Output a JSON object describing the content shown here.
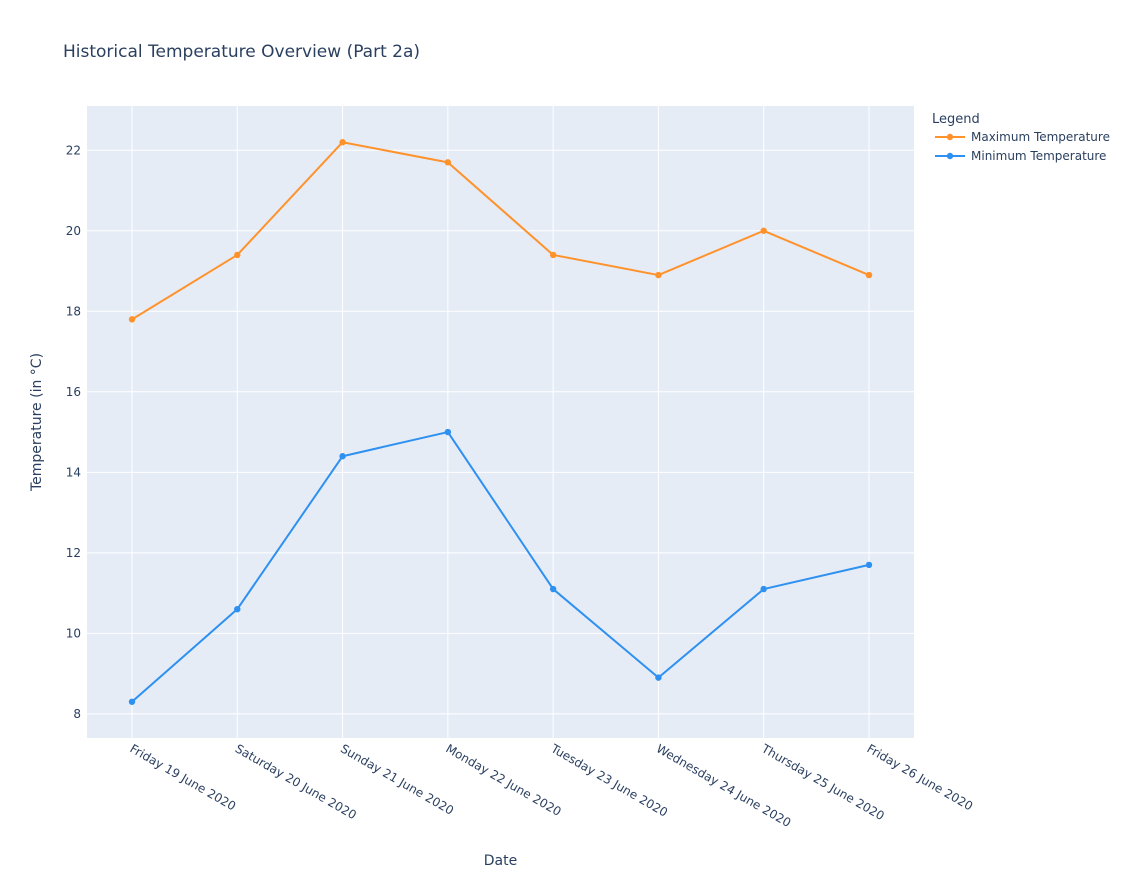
{
  "chart_data": {
    "type": "line",
    "title": "Historical Temperature Overview (Part 2a)",
    "xlabel": "Date",
    "ylabel": "Temperature (in °C)",
    "ylim": [
      7.4,
      23.1
    ],
    "yticks": [
      8,
      10,
      12,
      14,
      16,
      18,
      20,
      22
    ],
    "grid": true,
    "legend_title": "Legend",
    "legend_position": "top-right outside",
    "x": [
      "Friday 19 June 2020",
      "Saturday 20 June 2020",
      "Sunday 21 June 2020",
      "Monday 22 June 2020",
      "Tuesday 23 June 2020",
      "Wednesday 24 June 2020",
      "Thursday 25 June 2020",
      "Friday 26 June 2020"
    ],
    "series": [
      {
        "name": "Maximum Temperature",
        "color": "#ff922b",
        "values": [
          17.8,
          19.4,
          22.2,
          21.7,
          19.4,
          18.9,
          20.0,
          18.9
        ]
      },
      {
        "name": "Minimum Temperature",
        "color": "#2e90f0",
        "values": [
          8.3,
          10.6,
          14.4,
          15.0,
          11.1,
          8.9,
          11.1,
          11.7
        ]
      }
    ],
    "colors": {
      "plot_background": "#e5ecf6",
      "grid": "#ffffff",
      "text": "#2a3f5f"
    }
  }
}
